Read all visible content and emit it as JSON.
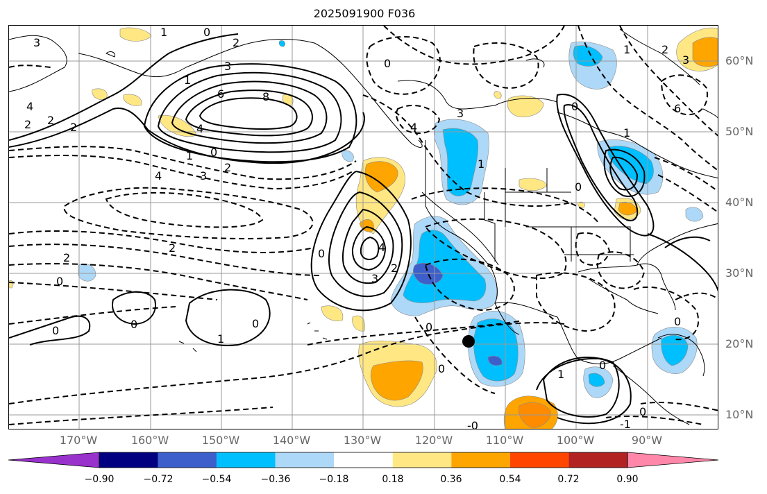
{
  "title": "2025091900 F036",
  "latitude_labels": [
    "60°N",
    "50°N",
    "40°N",
    "30°N",
    "20°N",
    "10°N"
  ],
  "longitude_labels": [
    "170°W",
    "160°W",
    "150°W",
    "140°W",
    "130°W",
    "120°W",
    "110°W",
    "100°W",
    "90°W"
  ],
  "colorbar": {
    "ticks": [
      "−0.90",
      "−0.72",
      "−0.54",
      "−0.36",
      "−0.18",
      "0.18",
      "0.36",
      "0.54",
      "0.72",
      "0.90"
    ],
    "colors": [
      "#9932cc",
      "#000080",
      "#3d5fcc",
      "#00bfff",
      "#add8f7",
      "#ffffff",
      "#ffe784",
      "#ffa500",
      "#ff4500",
      "#b22222",
      "#ff88aa"
    ]
  },
  "contour_labels": [
    "3",
    "1",
    "0",
    "2",
    "2",
    "3",
    "1",
    "6",
    "8",
    "4",
    "2",
    "2",
    "1",
    "0",
    "2",
    "4",
    "3",
    "4",
    "2",
    "2",
    "0",
    "0",
    "4",
    "3",
    "2",
    "0",
    "0",
    "1",
    "0",
    "4",
    "3",
    "1",
    "0",
    "1",
    "0",
    "1",
    "6",
    "2",
    "3",
    "0",
    "0",
    "1",
    "0",
    "0",
    "-1",
    "0",
    "0",
    "-0"
  ],
  "marker": "station-dot"
}
